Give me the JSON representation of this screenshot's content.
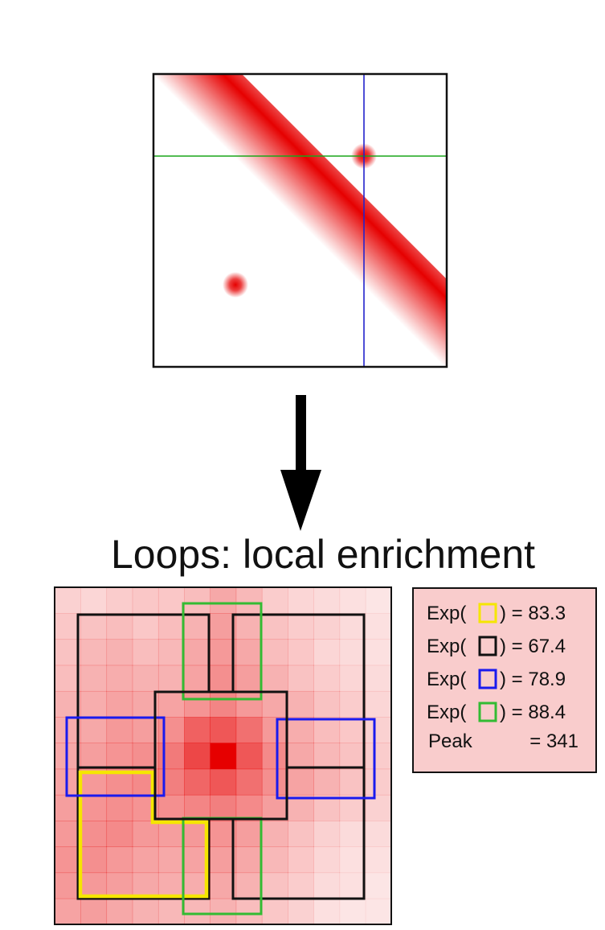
{
  "caption": "Loops: local enrichment",
  "colors": {
    "signal": "#e60000",
    "row_line": "#1aa51a",
    "col_line": "#2222cc",
    "yellow": "#f5e600",
    "black": "#111111",
    "blue": "#1a1aee",
    "green": "#33bb33",
    "legend_bg": "#f9cccc"
  },
  "legend": {
    "rows": [
      {
        "prefix": "Exp(",
        "color_key": "yellow",
        "suffix": ") = 83.3"
      },
      {
        "prefix": "Exp(",
        "color_key": "black",
        "suffix": ") = 67.4"
      },
      {
        "prefix": "Exp(",
        "color_key": "blue",
        "suffix": ") = 78.9"
      },
      {
        "prefix": "Exp(",
        "color_key": "green",
        "suffix": ") = 88.4"
      }
    ],
    "peak_label": "Peak",
    "peak_value": "=  341"
  },
  "zoom_grid": [
    [
      0.18,
      0.16,
      0.2,
      0.22,
      0.22,
      0.26,
      0.34,
      0.28,
      0.2,
      0.16,
      0.14,
      0.12,
      0.1
    ],
    [
      0.22,
      0.24,
      0.26,
      0.22,
      0.26,
      0.3,
      0.38,
      0.3,
      0.24,
      0.2,
      0.18,
      0.14,
      0.12
    ],
    [
      0.24,
      0.28,
      0.3,
      0.26,
      0.28,
      0.34,
      0.4,
      0.34,
      0.26,
      0.22,
      0.16,
      0.14,
      0.12
    ],
    [
      0.26,
      0.3,
      0.32,
      0.3,
      0.3,
      0.36,
      0.44,
      0.38,
      0.3,
      0.24,
      0.2,
      0.16,
      0.14
    ],
    [
      0.3,
      0.32,
      0.36,
      0.34,
      0.36,
      0.42,
      0.48,
      0.4,
      0.34,
      0.3,
      0.24,
      0.2,
      0.16
    ],
    [
      0.32,
      0.34,
      0.4,
      0.38,
      0.44,
      0.62,
      0.66,
      0.56,
      0.4,
      0.32,
      0.26,
      0.22,
      0.18
    ],
    [
      0.34,
      0.38,
      0.42,
      0.44,
      0.52,
      0.72,
      1.0,
      0.66,
      0.46,
      0.34,
      0.28,
      0.24,
      0.2
    ],
    [
      0.36,
      0.4,
      0.44,
      0.46,
      0.5,
      0.6,
      0.66,
      0.56,
      0.44,
      0.36,
      0.3,
      0.24,
      0.2
    ],
    [
      0.38,
      0.42,
      0.44,
      0.42,
      0.44,
      0.48,
      0.5,
      0.46,
      0.38,
      0.3,
      0.24,
      0.2,
      0.18
    ],
    [
      0.4,
      0.44,
      0.46,
      0.4,
      0.38,
      0.4,
      0.42,
      0.38,
      0.3,
      0.24,
      0.18,
      0.14,
      0.14
    ],
    [
      0.42,
      0.44,
      0.4,
      0.36,
      0.34,
      0.36,
      0.38,
      0.34,
      0.28,
      0.22,
      0.16,
      0.12,
      0.12
    ],
    [
      0.4,
      0.4,
      0.38,
      0.34,
      0.32,
      0.32,
      0.34,
      0.3,
      0.24,
      0.2,
      0.14,
      0.12,
      0.1
    ],
    [
      0.36,
      0.38,
      0.34,
      0.3,
      0.28,
      0.28,
      0.3,
      0.26,
      0.22,
      0.18,
      0.12,
      0.1,
      0.1
    ]
  ]
}
